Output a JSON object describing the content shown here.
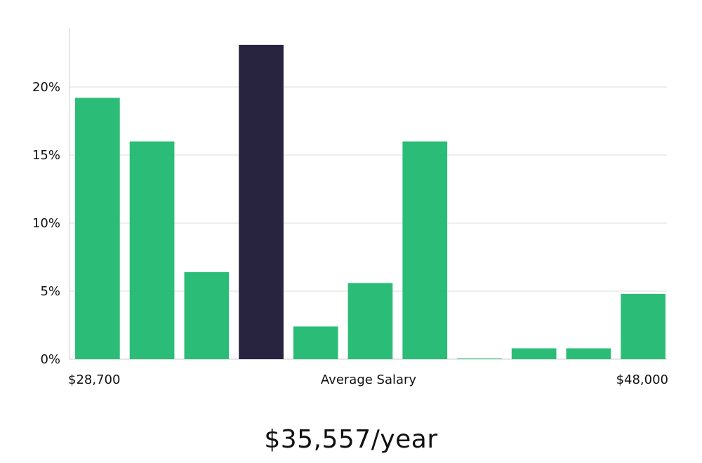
{
  "chart_data": {
    "type": "bar",
    "title": "",
    "xlabel": "Average Salary",
    "ylabel": "",
    "x_range_labels": {
      "min": "$28,700",
      "max": "$48,000"
    },
    "y_ticks": [
      "0%",
      "5%",
      "10%",
      "15%",
      "20%"
    ],
    "ylim": [
      0,
      24
    ],
    "grid": true,
    "values": [
      19.2,
      16.0,
      6.4,
      23.1,
      2.4,
      5.6,
      16.0,
      0.05,
      0.8,
      0.8,
      4.8
    ],
    "highlight_index": 3,
    "colors": {
      "bar": "#2bbd77",
      "highlight": "#28243f",
      "grid": "#dddddd",
      "axis": "#cccccc"
    }
  },
  "salary_headline": "$35,557/year"
}
